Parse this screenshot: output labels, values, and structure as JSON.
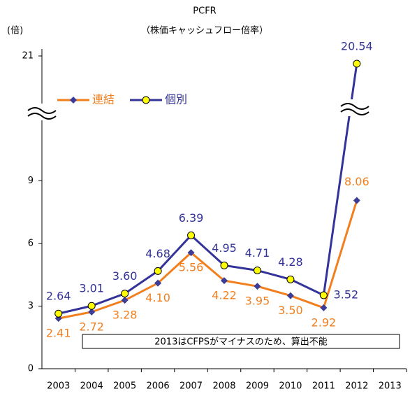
{
  "chart_data": {
    "type": "line",
    "title": "PCFR",
    "subtitle": "（株価キャッシュフロー倍率）",
    "y_label": "(倍)",
    "annotation": "2013はCFPSがマイナスのため、算出不能",
    "categories": [
      "2003",
      "2004",
      "2005",
      "2006",
      "2007",
      "2008",
      "2009",
      "2010",
      "2011",
      "2012",
      "2013"
    ],
    "series": [
      {
        "name": "連結",
        "color": "#f27f1e",
        "marker": "diamond",
        "marker_color": "#3b3b98",
        "values": [
          2.41,
          2.72,
          3.28,
          4.1,
          5.56,
          4.22,
          3.95,
          3.5,
          2.92,
          8.06,
          null
        ],
        "value_labels": [
          "2.41",
          "2.72",
          "3.28",
          "4.10",
          "5.56",
          "4.22",
          "3.95",
          "3.50",
          "2.92",
          "8.06",
          null
        ]
      },
      {
        "name": "個別",
        "color": "#333399",
        "marker": "circle",
        "marker_color": "#ffff00",
        "values": [
          2.64,
          3.01,
          3.6,
          4.68,
          6.39,
          4.95,
          4.71,
          4.28,
          3.52,
          20.54,
          null
        ],
        "value_labels": [
          "2.64",
          "3.01",
          "3.60",
          "4.68",
          "6.39",
          "4.95",
          "4.71",
          "4.28",
          "3.52",
          "20.54",
          null
        ]
      }
    ],
    "ylim": [
      0,
      21
    ],
    "yticks": [
      0,
      3,
      6,
      9,
      21
    ],
    "axis_break": [
      12,
      20
    ],
    "legend": "upper left",
    "grid": false
  }
}
